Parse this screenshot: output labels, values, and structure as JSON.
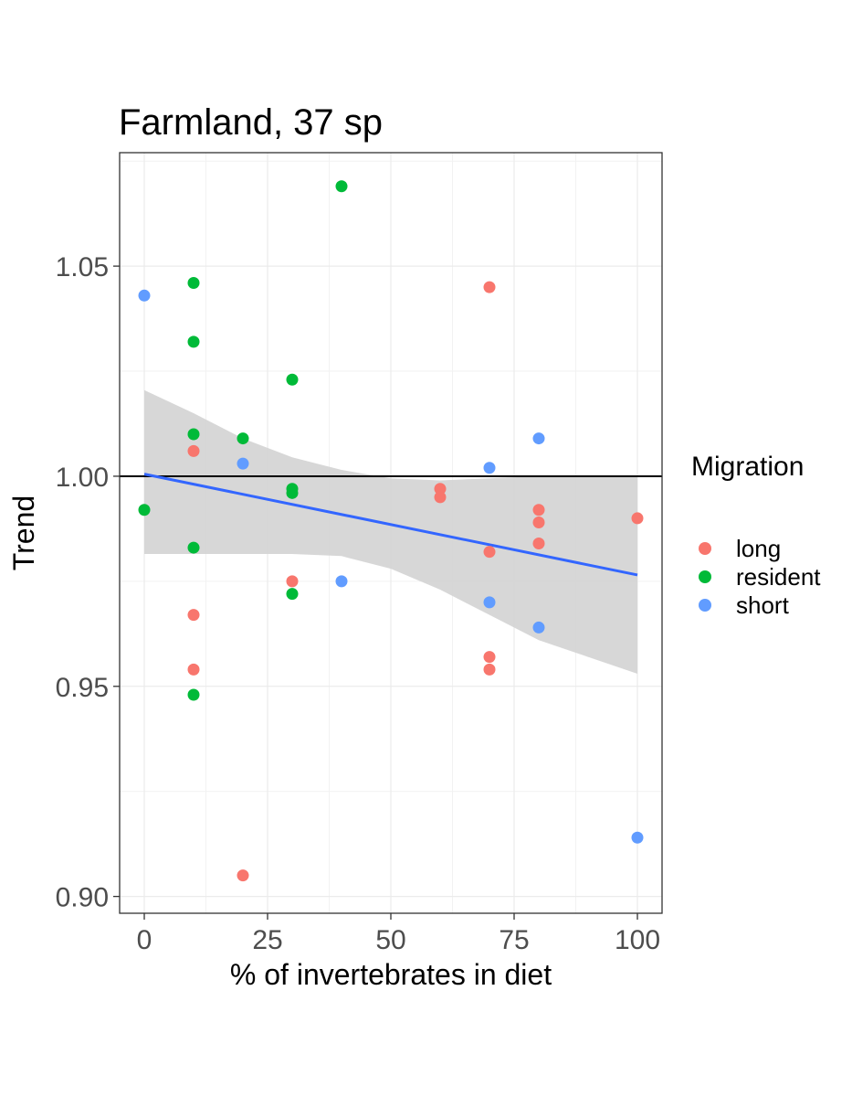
{
  "chart_data": {
    "type": "scatter",
    "title": "Farmland, 37 sp",
    "xlabel": "% of invertebrates in diet",
    "ylabel": "Trend",
    "xlim": [
      -5,
      105
    ],
    "ylim": [
      0.896,
      1.077
    ],
    "x_ticks": [
      0,
      25,
      50,
      75,
      100
    ],
    "x_tick_labels": [
      "0",
      "25",
      "50",
      "75",
      "100"
    ],
    "y_ticks": [
      0.9,
      0.95,
      1.0,
      1.05
    ],
    "y_tick_labels": [
      "0.90",
      "0.95",
      "1.00",
      "1.05"
    ],
    "minor_x": [
      12.5,
      37.5,
      62.5,
      87.5
    ],
    "minor_y": [
      0.925,
      0.975,
      1.025,
      1.075
    ],
    "grid": true,
    "reference_line_y": 1.0,
    "legend": {
      "title": "Migration",
      "position": "right",
      "entries": [
        "long",
        "resident",
        "short"
      ]
    },
    "colors": {
      "long": "#F8766D",
      "resident": "#00BA38",
      "short": "#619CFF"
    },
    "series": [
      {
        "name": "long",
        "points": [
          [
            10,
            1.006
          ],
          [
            10,
            0.967
          ],
          [
            10,
            0.954
          ],
          [
            20,
            0.905
          ],
          [
            30,
            0.975
          ],
          [
            60,
            0.997
          ],
          [
            60,
            0.995
          ],
          [
            70,
            1.045
          ],
          [
            70,
            0.982
          ],
          [
            70,
            0.957
          ],
          [
            70,
            0.954
          ],
          [
            80,
            0.992
          ],
          [
            80,
            0.989
          ],
          [
            80,
            0.984
          ],
          [
            100,
            0.99
          ]
        ]
      },
      {
        "name": "resident",
        "points": [
          [
            0,
            0.992
          ],
          [
            10,
            1.046
          ],
          [
            10,
            1.032
          ],
          [
            10,
            1.01
          ],
          [
            10,
            0.983
          ],
          [
            10,
            0.948
          ],
          [
            20,
            1.009
          ],
          [
            30,
            1.023
          ],
          [
            30,
            0.997
          ],
          [
            30,
            0.996
          ],
          [
            30,
            0.972
          ],
          [
            40,
            1.069
          ]
        ]
      },
      {
        "name": "short",
        "points": [
          [
            0,
            1.043
          ],
          [
            20,
            1.003
          ],
          [
            40,
            0.975
          ],
          [
            70,
            1.002
          ],
          [
            70,
            0.97
          ],
          [
            80,
            1.009
          ],
          [
            80,
            0.964
          ],
          [
            100,
            0.914
          ]
        ]
      }
    ],
    "fit_line": {
      "method": "lm",
      "color": "#3366FF",
      "x": [
        0,
        100
      ],
      "y": [
        1.0005,
        0.9765
      ],
      "ci_band": {
        "color": "#D3D3D3",
        "x": [
          0,
          10,
          20,
          30,
          40,
          50,
          60,
          70,
          80,
          90,
          100
        ],
        "upper": [
          1.0205,
          1.015,
          1.009,
          1.0045,
          1.0015,
          0.9995,
          0.999,
          0.9995,
          1.0,
          1.0,
          1.0
        ],
        "lower": [
          0.9815,
          0.9815,
          0.9815,
          0.9815,
          0.981,
          0.978,
          0.973,
          0.967,
          0.961,
          0.957,
          0.953
        ]
      }
    }
  }
}
